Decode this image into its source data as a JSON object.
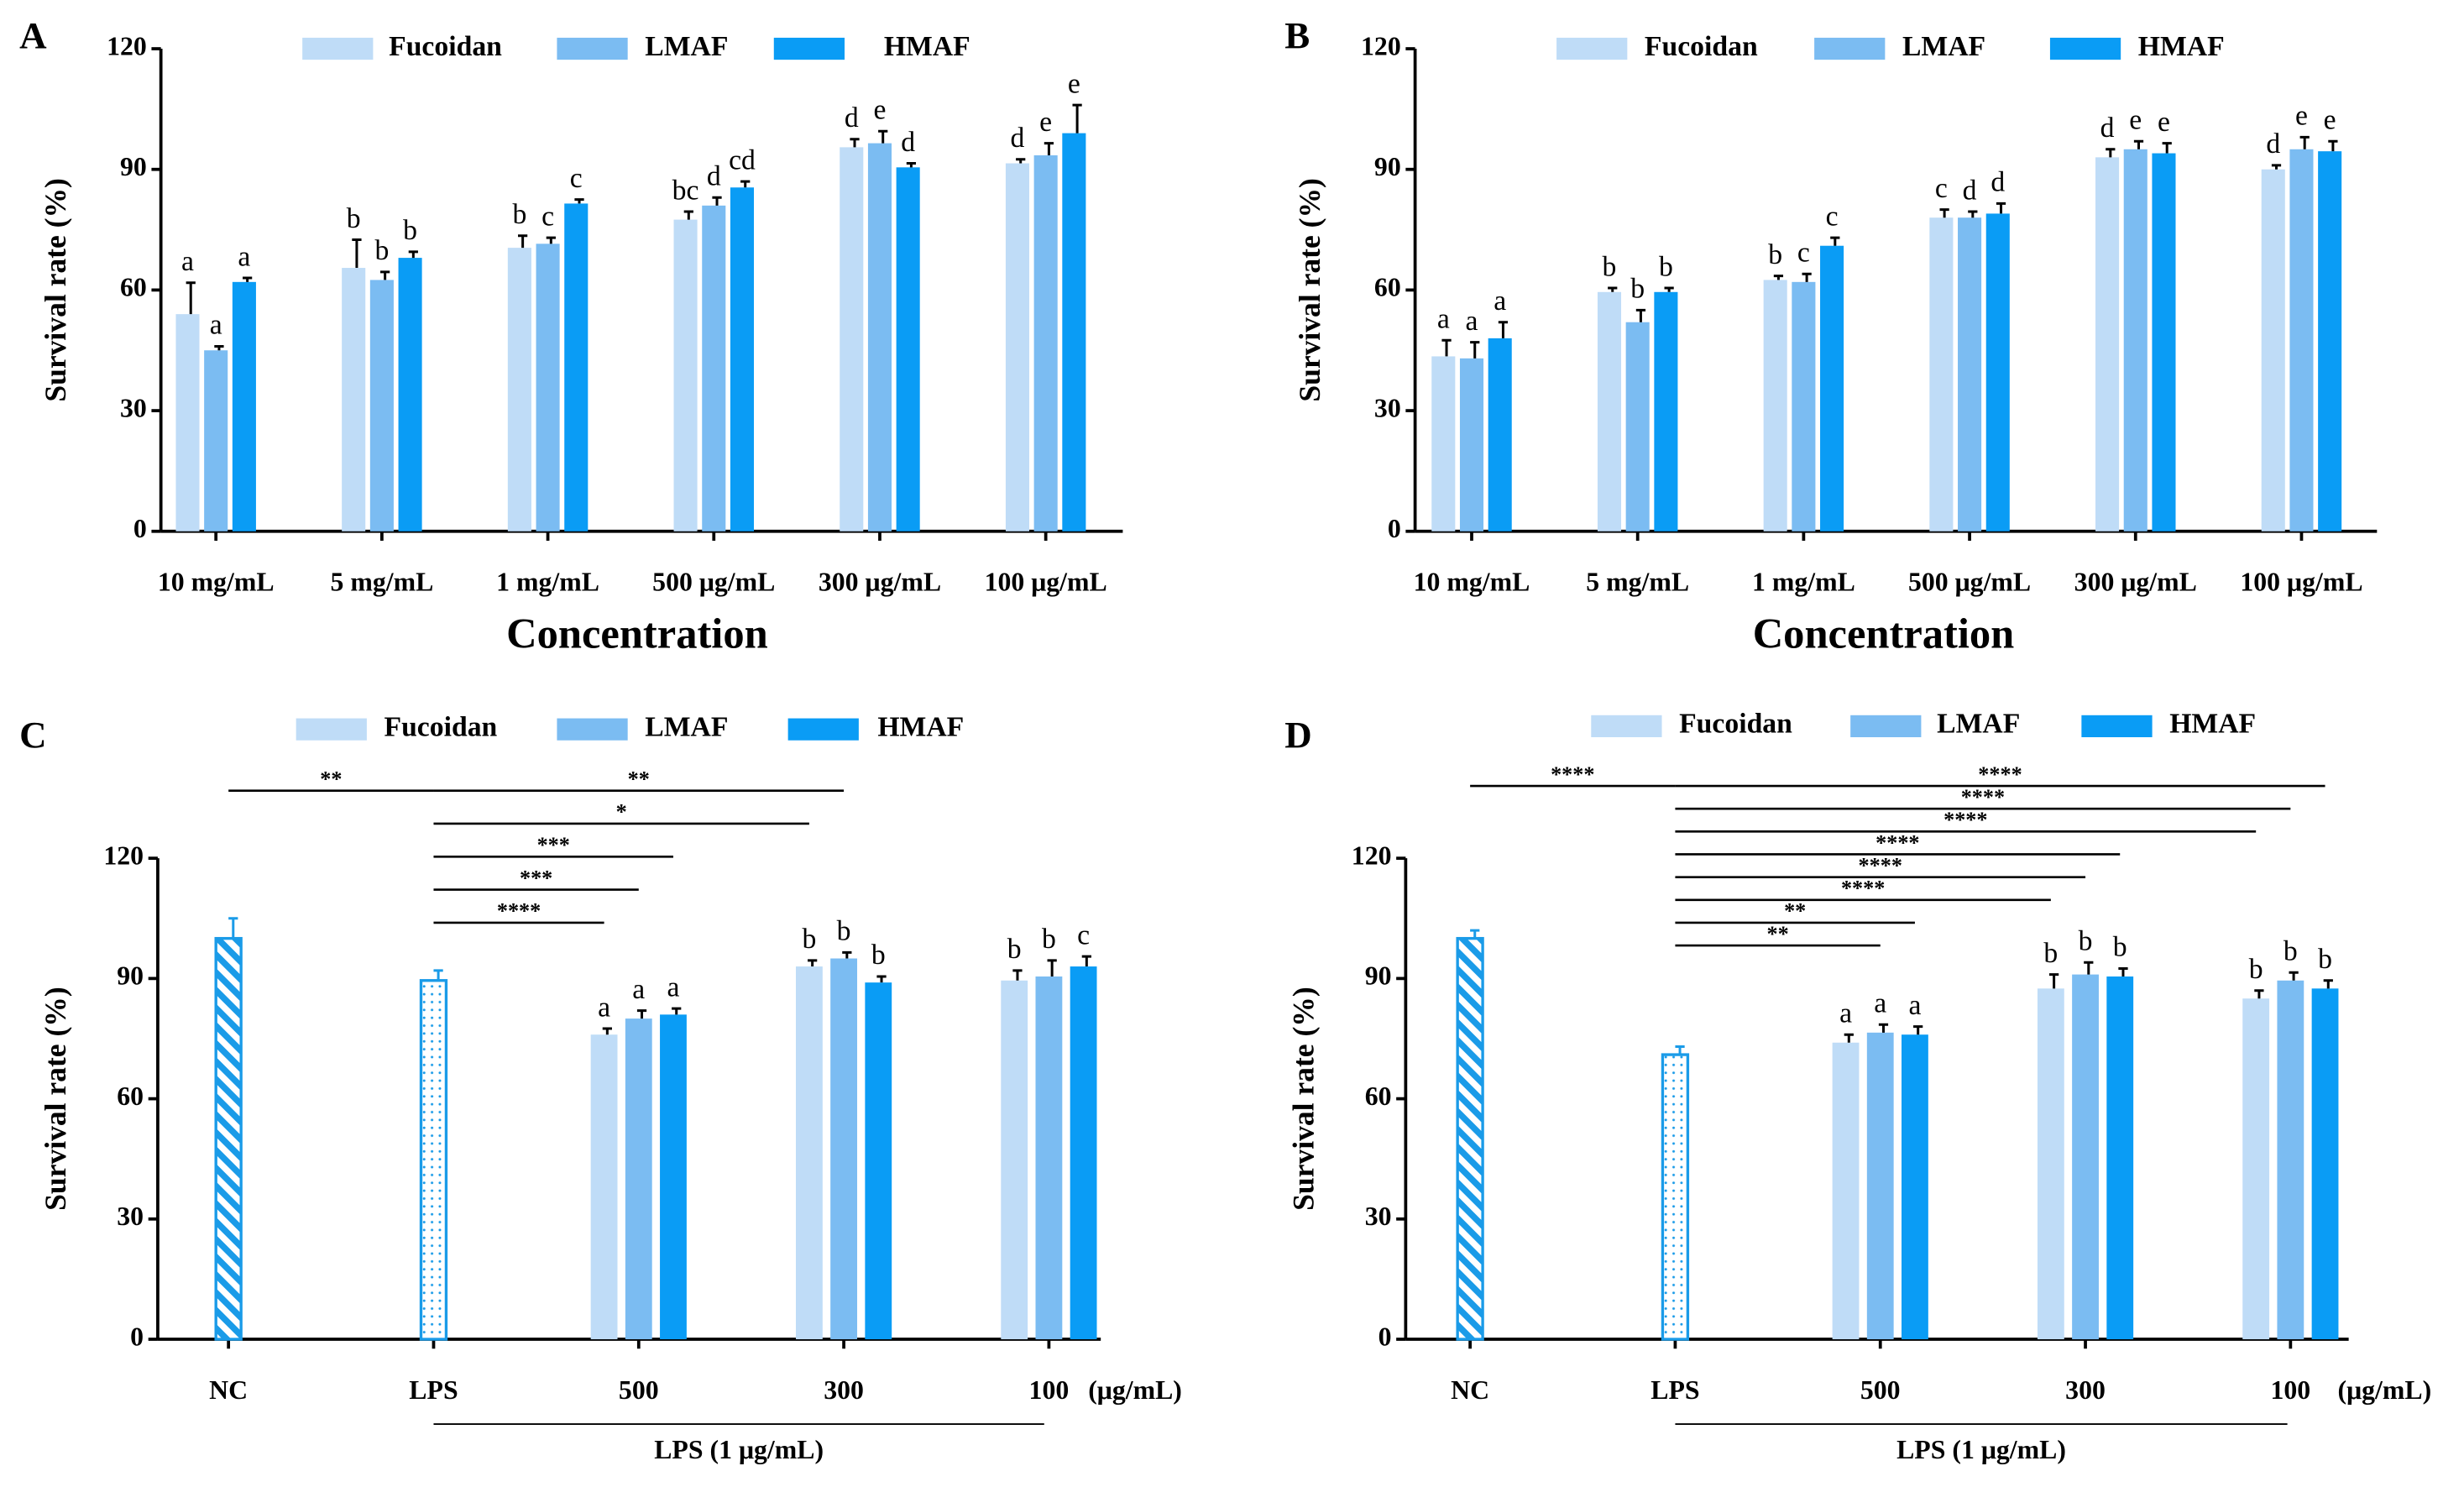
{
  "chart_data": [
    {
      "panel": "A",
      "type": "bar",
      "ylabel": "Survival rate (%)",
      "xlabel": "Concentration",
      "ylim": [
        0,
        120
      ],
      "yticks": [
        0,
        30,
        60,
        90,
        120
      ],
      "categories": [
        "10 mg/mL",
        "5 mg/mL",
        "1 mg/mL",
        "500 μg/mL",
        "300 μg/mL",
        "100 μg/mL"
      ],
      "series": [
        {
          "name": "Fucoidan",
          "color": "#bfdcf7",
          "values": [
            54,
            65.5,
            70.5,
            77.5,
            95.5,
            91.5
          ],
          "errors": [
            7.8,
            7,
            3,
            2,
            2,
            1
          ],
          "letters": [
            "a",
            "b",
            "b",
            "bc",
            "d",
            "d"
          ]
        },
        {
          "name": "LMAF",
          "color": "#7bbcf2",
          "values": [
            45,
            62.5,
            71.5,
            81,
            96.5,
            93.5
          ],
          "errors": [
            1,
            2,
            1.5,
            2,
            3,
            3
          ],
          "letters": [
            "a",
            "b",
            "c",
            "d",
            "e",
            "e"
          ]
        },
        {
          "name": "HMAF",
          "color": "#0a9cf5",
          "values": [
            62,
            68,
            81.5,
            85.5,
            90.5,
            99
          ],
          "errors": [
            1,
            1.5,
            1,
            1.5,
            1,
            7
          ],
          "letters": [
            "a",
            "b",
            "c",
            "cd",
            "d",
            "e"
          ]
        }
      ]
    },
    {
      "panel": "B",
      "type": "bar",
      "ylabel": "Survival rate (%)",
      "xlabel": "Concentration",
      "ylim": [
        0,
        120
      ],
      "yticks": [
        0,
        30,
        60,
        90,
        120
      ],
      "categories": [
        "10 mg/mL",
        "5 mg/mL",
        "1 mg/mL",
        "500 μg/mL",
        "300 μg/mL",
        "100 μg/mL"
      ],
      "series": [
        {
          "name": "Fucoidan",
          "color": "#bfdcf7",
          "values": [
            43.5,
            59.5,
            62.5,
            78,
            93,
            90
          ],
          "errors": [
            4,
            1,
            1,
            2,
            2,
            1
          ],
          "letters": [
            "a",
            "b",
            "b",
            "c",
            "d",
            "d"
          ]
        },
        {
          "name": "LMAF",
          "color": "#7bbcf2",
          "values": [
            43,
            52,
            62,
            78,
            95,
            95
          ],
          "errors": [
            4,
            3,
            2,
            1.5,
            2,
            3
          ],
          "letters": [
            "a",
            "b",
            "c",
            "d",
            "e",
            "e"
          ]
        },
        {
          "name": "HMAF",
          "color": "#0a9cf5",
          "values": [
            48,
            59.5,
            71,
            79,
            94,
            94.5
          ],
          "errors": [
            4,
            1,
            2,
            2.5,
            2.5,
            2.5
          ],
          "letters": [
            "a",
            "b",
            "c",
            "d",
            "e",
            "e"
          ]
        }
      ]
    },
    {
      "panel": "C",
      "type": "bar",
      "ylabel": "Survival rate (%)",
      "unit": "(μg/mL)",
      "group_label": "LPS (1 μg/mL)",
      "ylim": [
        0,
        120
      ],
      "yticks": [
        0,
        30,
        60,
        90,
        120
      ],
      "categories": [
        "NC",
        "LPS",
        "500",
        "300",
        "100"
      ],
      "controls": {
        "color": "#1a9be8",
        "values": [
          100,
          89.5
        ],
        "errors": [
          5,
          2.5
        ],
        "patterns": [
          "hatch",
          "dots"
        ]
      },
      "series": [
        {
          "name": "Fucoidan",
          "color": "#bfdcf7",
          "values": [
            null,
            null,
            76,
            93,
            89.5
          ],
          "errors": [
            null,
            null,
            1.5,
            1.5,
            2.5
          ],
          "letters": [
            null,
            null,
            "a",
            "b",
            "b"
          ]
        },
        {
          "name": "LMAF",
          "color": "#7bbcf2",
          "values": [
            null,
            null,
            80,
            95,
            90.5
          ],
          "errors": [
            null,
            null,
            2,
            1.5,
            4
          ],
          "letters": [
            null,
            null,
            "a",
            "b",
            "b"
          ]
        },
        {
          "name": "HMAF",
          "color": "#0a9cf5",
          "values": [
            null,
            null,
            81,
            89,
            93
          ],
          "errors": [
            null,
            null,
            1.5,
            1.5,
            2.5
          ],
          "letters": [
            null,
            null,
            "a",
            "b",
            "c"
          ]
        }
      ],
      "comparisons": [
        {
          "label": "**",
          "from": 0,
          "to": 1,
          "bar": null
        },
        {
          "label": "**",
          "from": 1,
          "to": 3,
          "bar": 1
        },
        {
          "label": "*",
          "from": 1,
          "to": 3,
          "bar": 0
        },
        {
          "label": "***",
          "from": 1,
          "to": 2,
          "bar": 2
        },
        {
          "label": "***",
          "from": 1,
          "to": 2,
          "bar": 1
        },
        {
          "label": "****",
          "from": 1,
          "to": 2,
          "bar": 0
        }
      ]
    },
    {
      "panel": "D",
      "type": "bar",
      "ylabel": "Survival rate (%)",
      "unit": "(μg/mL)",
      "group_label": "LPS (1 μg/mL)",
      "ylim": [
        0,
        120
      ],
      "yticks": [
        0,
        30,
        60,
        90,
        120
      ],
      "categories": [
        "NC",
        "LPS",
        "500",
        "300",
        "100"
      ],
      "controls": {
        "color": "#1a9be8",
        "values": [
          100,
          71
        ],
        "errors": [
          2,
          2
        ],
        "patterns": [
          "hatch",
          "dots"
        ]
      },
      "series": [
        {
          "name": "Fucoidan",
          "color": "#bfdcf7",
          "values": [
            null,
            null,
            74,
            87.5,
            85
          ],
          "errors": [
            null,
            null,
            2,
            3.5,
            2
          ],
          "letters": [
            null,
            null,
            "a",
            "b",
            "b"
          ]
        },
        {
          "name": "LMAF",
          "color": "#7bbcf2",
          "values": [
            null,
            null,
            76.5,
            91,
            89.5
          ],
          "errors": [
            null,
            null,
            2,
            3,
            2
          ],
          "letters": [
            null,
            null,
            "a",
            "b",
            "b"
          ]
        },
        {
          "name": "HMAF",
          "color": "#0a9cf5",
          "values": [
            null,
            null,
            76,
            90.5,
            87.5
          ],
          "errors": [
            null,
            null,
            2,
            2,
            2
          ],
          "letters": [
            null,
            null,
            "a",
            "b",
            "b"
          ]
        }
      ],
      "comparisons": [
        {
          "label": "****",
          "from": 0,
          "to": 1,
          "bar": null
        },
        {
          "label": "****",
          "from": 1,
          "to": 4,
          "bar": 2
        },
        {
          "label": "****",
          "from": 1,
          "to": 4,
          "bar": 1
        },
        {
          "label": "****",
          "from": 1,
          "to": 4,
          "bar": 0
        },
        {
          "label": "****",
          "from": 1,
          "to": 3,
          "bar": 2
        },
        {
          "label": "****",
          "from": 1,
          "to": 3,
          "bar": 1
        },
        {
          "label": "****",
          "from": 1,
          "to": 3,
          "bar": 0
        },
        {
          "label": "**",
          "from": 1,
          "to": 2,
          "bar": 2
        },
        {
          "label": "**",
          "from": 1,
          "to": 2,
          "bar": 1
        }
      ]
    }
  ]
}
